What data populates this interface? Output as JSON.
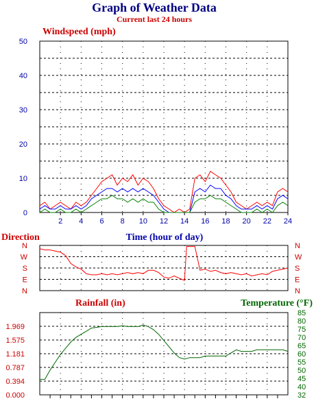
{
  "title": "Graph of Weather Data",
  "subtitle": "Current last 24 hours",
  "colors": {
    "title": "#000080",
    "subtitle": "#cc0000",
    "wind_axis": "#0000aa",
    "direction": "#cc0000",
    "rain": "#cc0000",
    "temp": "#006600",
    "series_red": "#ff0000",
    "series_blue": "#0000ff",
    "series_green": "#008000",
    "grid": "#000000"
  },
  "chart_data": [
    {
      "type": "line",
      "name": "windspeed",
      "ylabel": "Windspeed (mph)",
      "xlabel": "Time (hour of day)",
      "xlim": [
        0,
        24
      ],
      "ylim": [
        0,
        50
      ],
      "yticks": [
        "0",
        "10",
        "20",
        "30",
        "40",
        "50"
      ],
      "xticks": [
        "2",
        "4",
        "6",
        "8",
        "10",
        "12",
        "14",
        "16",
        "18",
        "20",
        "22",
        "24"
      ],
      "grid": true,
      "series": [
        {
          "color": "#ff0000",
          "x": [
            0,
            0.5,
            1,
            1.5,
            2,
            2.5,
            3,
            3.5,
            4,
            4.5,
            5,
            5.5,
            6,
            6.5,
            7,
            7.5,
            8,
            8.5,
            9,
            9.5,
            10,
            10.5,
            11,
            11.5,
            12,
            12.5,
            13,
            13.5,
            14,
            14.5,
            15,
            15.5,
            16,
            16.5,
            17,
            17.5,
            18,
            18.5,
            19,
            19.5,
            20,
            20.5,
            21,
            21.5,
            22,
            22.5,
            23,
            23.5,
            24
          ],
          "values": [
            2,
            3,
            1,
            2,
            3,
            2,
            1,
            3,
            2,
            3,
            5,
            7,
            9,
            10,
            11,
            8,
            10,
            9,
            11,
            8,
            10,
            9,
            7,
            4,
            2,
            1,
            0,
            1,
            0,
            1,
            10,
            11,
            9,
            12,
            11,
            10,
            8,
            6,
            3,
            2,
            1,
            2,
            3,
            2,
            3,
            2,
            6,
            7,
            6
          ]
        },
        {
          "color": "#0000ff",
          "x": [
            0,
            0.5,
            1,
            1.5,
            2,
            2.5,
            3,
            3.5,
            4,
            4.5,
            5,
            5.5,
            6,
            6.5,
            7,
            7.5,
            8,
            8.5,
            9,
            9.5,
            10,
            10.5,
            11,
            11.5,
            12,
            12.5,
            13,
            13.5,
            14,
            14.5,
            15,
            15.5,
            16,
            16.5,
            17,
            17.5,
            18,
            18.5,
            19,
            19.5,
            20,
            20.5,
            21,
            21.5,
            22,
            22.5,
            23,
            23.5,
            24
          ],
          "values": [
            1,
            2,
            1,
            1,
            2,
            1,
            1,
            2,
            1,
            2,
            4,
            5,
            6,
            7,
            7,
            6,
            7,
            6,
            7,
            6,
            7,
            6,
            5,
            3,
            1,
            0,
            0,
            0,
            0,
            0,
            6,
            7,
            6,
            8,
            7,
            7,
            5,
            4,
            2,
            1,
            1,
            1,
            2,
            1,
            2,
            1,
            4,
            5,
            4
          ]
        },
        {
          "color": "#008000",
          "x": [
            0,
            0.5,
            1,
            1.5,
            2,
            2.5,
            3,
            3.5,
            4,
            4.5,
            5,
            5.5,
            6,
            6.5,
            7,
            7.5,
            8,
            8.5,
            9,
            9.5,
            10,
            10.5,
            11,
            11.5,
            12,
            12.5,
            13,
            13.5,
            14,
            14.5,
            15,
            15.5,
            16,
            16.5,
            17,
            17.5,
            18,
            18.5,
            19,
            19.5,
            20,
            20.5,
            21,
            21.5,
            22,
            22.5,
            23,
            23.5,
            24
          ],
          "values": [
            0,
            1,
            0,
            0,
            1,
            0,
            0,
            1,
            0,
            1,
            2,
            3,
            4,
            4,
            5,
            4,
            4,
            3,
            4,
            3,
            4,
            3,
            3,
            1,
            0,
            0,
            0,
            0,
            0,
            0,
            3,
            4,
            4,
            5,
            4,
            4,
            3,
            2,
            1,
            0,
            0,
            0,
            1,
            0,
            1,
            0,
            2,
            3,
            2
          ]
        }
      ]
    },
    {
      "type": "line",
      "name": "direction",
      "ylabel": "Direction",
      "xlim": [
        0,
        24
      ],
      "ylim": [
        0,
        4
      ],
      "yticks": [
        "N",
        "E",
        "S",
        "W",
        "N"
      ],
      "grid": true,
      "series": [
        {
          "color": "#ff0000",
          "x": [
            0,
            0.5,
            1,
            1.5,
            2,
            2.5,
            3,
            3.5,
            4,
            4.5,
            5,
            5.5,
            6,
            6.5,
            7,
            7.5,
            8,
            8.5,
            9,
            9.5,
            10,
            10.5,
            11,
            11.5,
            12,
            12.5,
            13,
            13.5,
            14,
            14.2,
            14.5,
            15,
            15.5,
            16,
            16.5,
            17,
            17.5,
            18,
            18.5,
            19,
            19.5,
            20,
            20.5,
            21,
            21.5,
            22,
            22.5,
            23,
            23.5,
            24
          ],
          "values": [
            3.7,
            3.6,
            3.6,
            3.5,
            3.4,
            3.1,
            2.4,
            2.1,
            1.9,
            1.5,
            1.4,
            1.4,
            1.5,
            1.4,
            1.5,
            1.4,
            1.5,
            1.6,
            1.5,
            1.6,
            1.5,
            1.8,
            1.8,
            1.6,
            1.2,
            1.1,
            1.3,
            1.1,
            0.9,
            3.9,
            3.9,
            3.9,
            1.8,
            1.9,
            1.7,
            1.8,
            1.6,
            1.5,
            1.6,
            1.5,
            1.4,
            1.5,
            1.3,
            1.4,
            1.5,
            1.4,
            1.7,
            1.8,
            1.9,
            2.0
          ]
        }
      ]
    },
    {
      "type": "line",
      "name": "rainfall-temperature",
      "ylabel": "Rainfall (in)",
      "y2label": "Temperature (°F)",
      "xlim": [
        0,
        24
      ],
      "ylim": [
        0,
        2.362
      ],
      "y2lim": [
        32,
        85
      ],
      "yticks": [
        "0.000",
        "0.394",
        "0.787",
        "1.181",
        "1.575",
        "1.969"
      ],
      "y2ticks": [
        "32",
        "40",
        "45",
        "50",
        "55",
        "60",
        "65",
        "70",
        "75",
        "80",
        "85"
      ],
      "grid": true,
      "series": [
        {
          "name": "",
          "axis": "right",
          "color": "#006600",
          "x": [
            0,
            0.5,
            1,
            1.5,
            2,
            2.5,
            3,
            3.5,
            4,
            4.5,
            5,
            5.5,
            6,
            6.5,
            7,
            7.5,
            8,
            8.5,
            9,
            9.5,
            10,
            10.5,
            11,
            11.5,
            12,
            12.5,
            13,
            13.5,
            14,
            14.5,
            15,
            15.5,
            16,
            16.5,
            17,
            17.5,
            18,
            18.5,
            19,
            19.5,
            20,
            20.5,
            21,
            21.5,
            22,
            22.5,
            23,
            23.5,
            24
          ],
          "values": [
            42,
            42,
            48,
            53,
            58,
            62,
            66,
            69,
            71,
            73,
            75,
            75.5,
            76,
            76,
            76,
            76,
            76.5,
            76,
            76,
            76,
            77,
            76,
            74,
            71,
            67,
            63,
            59,
            56,
            55,
            56,
            56,
            56,
            57,
            57,
            57,
            57,
            57,
            59,
            61,
            60,
            60,
            60,
            61,
            61,
            61,
            61,
            61,
            61,
            60
          ]
        }
      ]
    }
  ]
}
